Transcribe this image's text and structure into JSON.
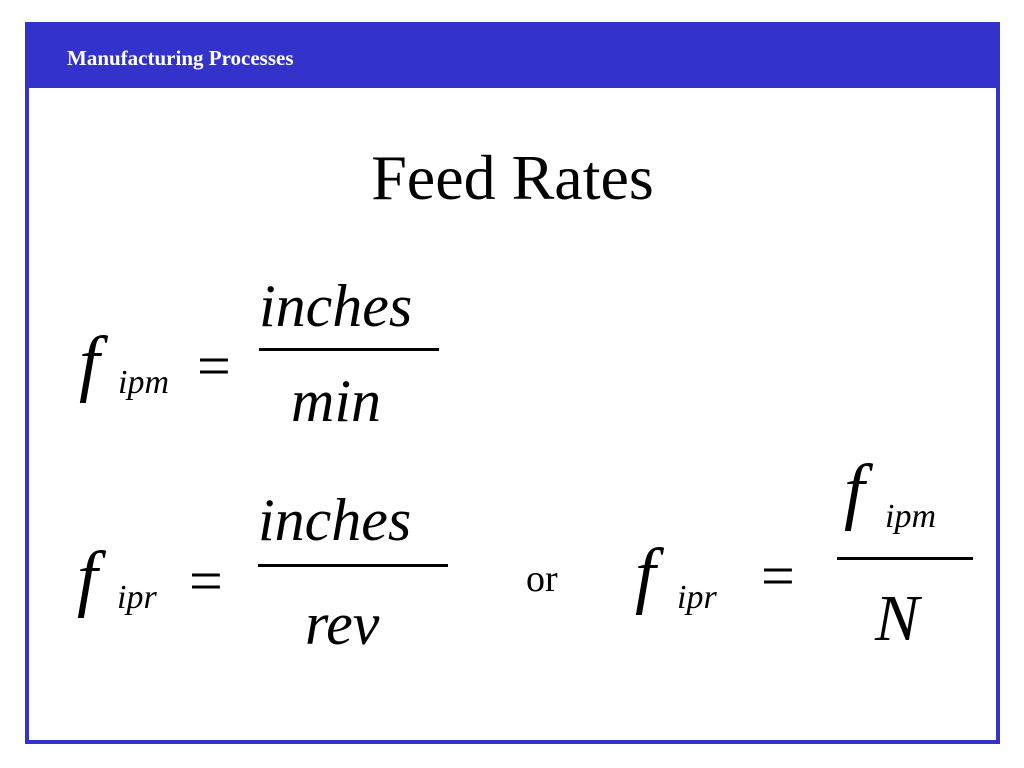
{
  "header": {
    "title": "Manufacturing Processes"
  },
  "slide": {
    "title": "Feed Rates"
  },
  "equations": {
    "ipm": {
      "symbol": "f",
      "subscript": "ipm",
      "equals": "=",
      "numerator": "inches",
      "denominator": "min"
    },
    "ipr": {
      "symbol": "f",
      "subscript": "ipr",
      "equals": "=",
      "numerator": "inches",
      "denominator": "rev"
    },
    "connector": "or",
    "ipr_alt": {
      "symbol": "f",
      "subscript": "ipr",
      "equals": "=",
      "num_symbol": "f",
      "num_subscript": "ipm",
      "denominator": "N"
    }
  },
  "colors": {
    "frame": "#3333cc",
    "header_text": "#ffffff",
    "text": "#000000"
  }
}
